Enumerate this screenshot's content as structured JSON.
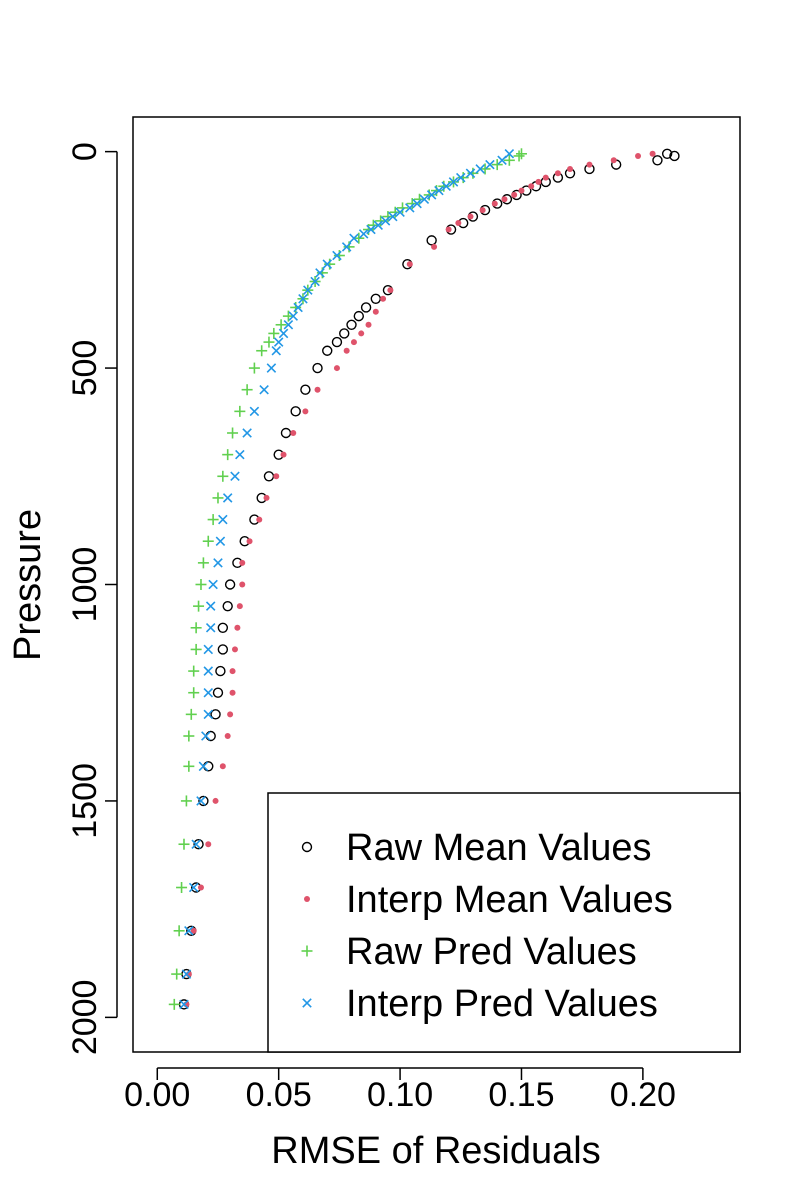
{
  "chart_data": {
    "type": "scatter",
    "xlabel": "RMSE of Residuals",
    "ylabel": "Pressure",
    "xlim": [
      -0.01,
      0.24
    ],
    "ylim": [
      2080,
      -80
    ],
    "y_reversed": true,
    "x_ticks": [
      0.0,
      0.05,
      0.1,
      0.15,
      0.2
    ],
    "x_tick_labels": [
      "0.00",
      "0.05",
      "0.10",
      "0.15",
      "0.20"
    ],
    "y_ticks": [
      0,
      500,
      1000,
      1500,
      2000
    ],
    "y_tick_labels": [
      "0",
      "500",
      "1000",
      "1500",
      "2000"
    ],
    "grid": false,
    "legend_position": "bottom-right",
    "series": [
      {
        "name": "Raw Mean Values",
        "marker": "open-circle",
        "color": "#000000",
        "points": [
          [
            0.213,
            10
          ],
          [
            0.21,
            5
          ],
          [
            0.206,
            20
          ],
          [
            0.189,
            30
          ],
          [
            0.178,
            40
          ],
          [
            0.17,
            50
          ],
          [
            0.165,
            60
          ],
          [
            0.16,
            70
          ],
          [
            0.156,
            80
          ],
          [
            0.152,
            90
          ],
          [
            0.148,
            100
          ],
          [
            0.144,
            110
          ],
          [
            0.14,
            120
          ],
          [
            0.135,
            135
          ],
          [
            0.13,
            150
          ],
          [
            0.126,
            165
          ],
          [
            0.121,
            180
          ],
          [
            0.113,
            205
          ],
          [
            0.103,
            260
          ],
          [
            0.095,
            320
          ],
          [
            0.09,
            340
          ],
          [
            0.086,
            360
          ],
          [
            0.083,
            380
          ],
          [
            0.08,
            400
          ],
          [
            0.077,
            420
          ],
          [
            0.074,
            440
          ],
          [
            0.07,
            460
          ],
          [
            0.066,
            500
          ],
          [
            0.061,
            550
          ],
          [
            0.057,
            600
          ],
          [
            0.053,
            650
          ],
          [
            0.05,
            700
          ],
          [
            0.046,
            750
          ],
          [
            0.043,
            800
          ],
          [
            0.04,
            850
          ],
          [
            0.036,
            900
          ],
          [
            0.033,
            950
          ],
          [
            0.03,
            1000
          ],
          [
            0.029,
            1050
          ],
          [
            0.027,
            1100
          ],
          [
            0.027,
            1150
          ],
          [
            0.026,
            1200
          ],
          [
            0.025,
            1250
          ],
          [
            0.024,
            1300
          ],
          [
            0.022,
            1350
          ],
          [
            0.021,
            1420
          ],
          [
            0.019,
            1500
          ],
          [
            0.017,
            1600
          ],
          [
            0.016,
            1700
          ],
          [
            0.014,
            1800
          ],
          [
            0.012,
            1900
          ],
          [
            0.011,
            1970
          ]
        ]
      },
      {
        "name": "Interp Mean Values",
        "marker": "filled-dot",
        "color": "#DF536B",
        "points": [
          [
            0.204,
            5
          ],
          [
            0.198,
            10
          ],
          [
            0.188,
            20
          ],
          [
            0.178,
            30
          ],
          [
            0.17,
            40
          ],
          [
            0.165,
            50
          ],
          [
            0.16,
            60
          ],
          [
            0.157,
            70
          ],
          [
            0.154,
            80
          ],
          [
            0.15,
            90
          ],
          [
            0.147,
            100
          ],
          [
            0.143,
            110
          ],
          [
            0.139,
            120
          ],
          [
            0.134,
            135
          ],
          [
            0.129,
            150
          ],
          [
            0.124,
            165
          ],
          [
            0.12,
            180
          ],
          [
            0.114,
            220
          ],
          [
            0.104,
            260
          ],
          [
            0.096,
            320
          ],
          [
            0.093,
            340
          ],
          [
            0.09,
            370
          ],
          [
            0.087,
            400
          ],
          [
            0.084,
            420
          ],
          [
            0.081,
            440
          ],
          [
            0.078,
            460
          ],
          [
            0.074,
            500
          ],
          [
            0.066,
            550
          ],
          [
            0.061,
            600
          ],
          [
            0.056,
            650
          ],
          [
            0.052,
            700
          ],
          [
            0.049,
            750
          ],
          [
            0.045,
            800
          ],
          [
            0.042,
            850
          ],
          [
            0.038,
            900
          ],
          [
            0.035,
            950
          ],
          [
            0.035,
            1000
          ],
          [
            0.034,
            1050
          ],
          [
            0.033,
            1100
          ],
          [
            0.032,
            1150
          ],
          [
            0.031,
            1200
          ],
          [
            0.031,
            1250
          ],
          [
            0.03,
            1300
          ],
          [
            0.029,
            1350
          ],
          [
            0.027,
            1420
          ],
          [
            0.024,
            1500
          ],
          [
            0.021,
            1600
          ],
          [
            0.018,
            1700
          ],
          [
            0.015,
            1800
          ],
          [
            0.013,
            1900
          ],
          [
            0.012,
            1970
          ]
        ]
      },
      {
        "name": "Raw Pred Values",
        "marker": "plus",
        "color": "#61D04F",
        "points": [
          [
            0.15,
            5
          ],
          [
            0.149,
            10
          ],
          [
            0.145,
            20
          ],
          [
            0.14,
            30
          ],
          [
            0.135,
            40
          ],
          [
            0.13,
            50
          ],
          [
            0.126,
            60
          ],
          [
            0.122,
            70
          ],
          [
            0.118,
            80
          ],
          [
            0.115,
            90
          ],
          [
            0.112,
            100
          ],
          [
            0.108,
            110
          ],
          [
            0.105,
            120
          ],
          [
            0.101,
            130
          ],
          [
            0.098,
            140
          ],
          [
            0.095,
            150
          ],
          [
            0.092,
            160
          ],
          [
            0.089,
            170
          ],
          [
            0.087,
            180
          ],
          [
            0.083,
            200
          ],
          [
            0.079,
            220
          ],
          [
            0.075,
            240
          ],
          [
            0.071,
            260
          ],
          [
            0.068,
            280
          ],
          [
            0.065,
            300
          ],
          [
            0.062,
            320
          ],
          [
            0.06,
            340
          ],
          [
            0.057,
            360
          ],
          [
            0.054,
            380
          ],
          [
            0.051,
            400
          ],
          [
            0.048,
            420
          ],
          [
            0.046,
            440
          ],
          [
            0.043,
            460
          ],
          [
            0.04,
            500
          ],
          [
            0.037,
            550
          ],
          [
            0.034,
            600
          ],
          [
            0.031,
            650
          ],
          [
            0.029,
            700
          ],
          [
            0.027,
            750
          ],
          [
            0.025,
            800
          ],
          [
            0.023,
            850
          ],
          [
            0.021,
            900
          ],
          [
            0.019,
            950
          ],
          [
            0.018,
            1000
          ],
          [
            0.017,
            1050
          ],
          [
            0.016,
            1100
          ],
          [
            0.016,
            1150
          ],
          [
            0.015,
            1200
          ],
          [
            0.015,
            1250
          ],
          [
            0.014,
            1300
          ],
          [
            0.013,
            1350
          ],
          [
            0.013,
            1420
          ],
          [
            0.012,
            1500
          ],
          [
            0.011,
            1600
          ],
          [
            0.01,
            1700
          ],
          [
            0.009,
            1800
          ],
          [
            0.008,
            1900
          ],
          [
            0.007,
            1970
          ]
        ]
      },
      {
        "name": "Interp Pred Values",
        "marker": "cross",
        "color": "#2297E6",
        "points": [
          [
            0.145,
            5
          ],
          [
            0.142,
            20
          ],
          [
            0.137,
            30
          ],
          [
            0.133,
            40
          ],
          [
            0.129,
            50
          ],
          [
            0.125,
            60
          ],
          [
            0.122,
            70
          ],
          [
            0.119,
            80
          ],
          [
            0.116,
            90
          ],
          [
            0.113,
            100
          ],
          [
            0.11,
            110
          ],
          [
            0.107,
            120
          ],
          [
            0.104,
            130
          ],
          [
            0.1,
            140
          ],
          [
            0.097,
            150
          ],
          [
            0.094,
            160
          ],
          [
            0.091,
            170
          ],
          [
            0.088,
            180
          ],
          [
            0.085,
            190
          ],
          [
            0.081,
            200
          ],
          [
            0.078,
            220
          ],
          [
            0.074,
            240
          ],
          [
            0.07,
            260
          ],
          [
            0.067,
            280
          ],
          [
            0.065,
            300
          ],
          [
            0.062,
            320
          ],
          [
            0.06,
            340
          ],
          [
            0.058,
            360
          ],
          [
            0.056,
            380
          ],
          [
            0.054,
            400
          ],
          [
            0.052,
            420
          ],
          [
            0.05,
            440
          ],
          [
            0.049,
            460
          ],
          [
            0.047,
            500
          ],
          [
            0.044,
            550
          ],
          [
            0.04,
            600
          ],
          [
            0.037,
            650
          ],
          [
            0.034,
            700
          ],
          [
            0.032,
            750
          ],
          [
            0.029,
            800
          ],
          [
            0.027,
            850
          ],
          [
            0.026,
            900
          ],
          [
            0.025,
            950
          ],
          [
            0.023,
            1000
          ],
          [
            0.022,
            1050
          ],
          [
            0.022,
            1100
          ],
          [
            0.021,
            1150
          ],
          [
            0.021,
            1200
          ],
          [
            0.021,
            1250
          ],
          [
            0.021,
            1300
          ],
          [
            0.02,
            1350
          ],
          [
            0.019,
            1420
          ],
          [
            0.018,
            1500
          ],
          [
            0.016,
            1600
          ],
          [
            0.015,
            1700
          ],
          [
            0.013,
            1800
          ],
          [
            0.012,
            1900
          ],
          [
            0.011,
            1970
          ]
        ]
      }
    ]
  }
}
